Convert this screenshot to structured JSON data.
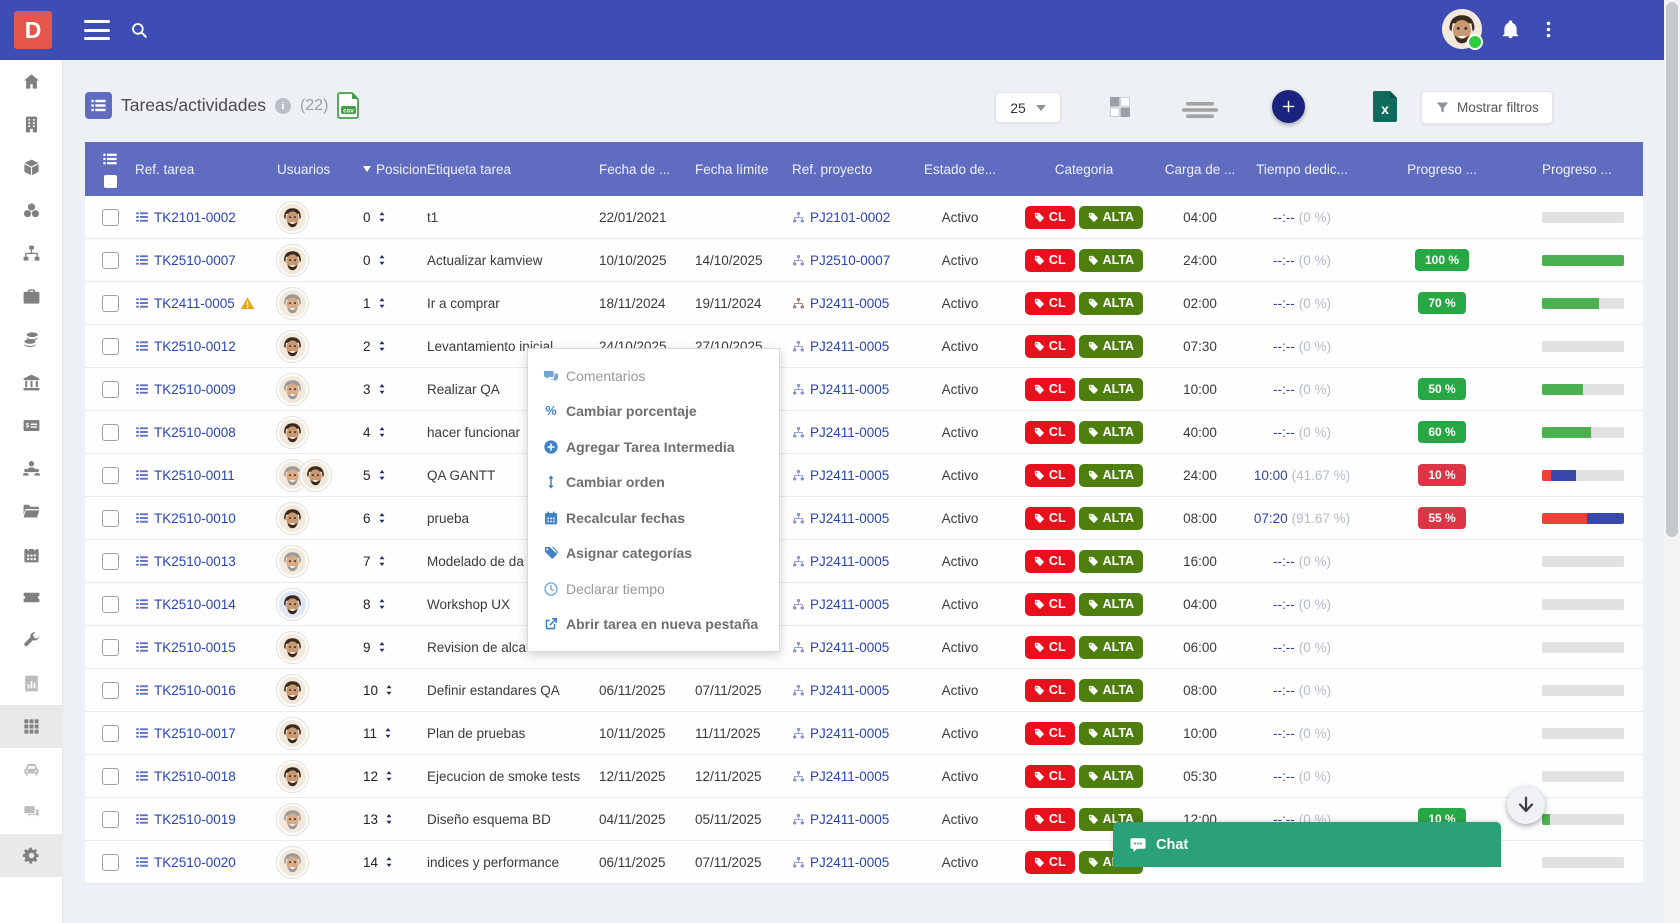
{
  "app": {
    "logo_letter": "D"
  },
  "colors": {
    "topbar": "#3e4db3",
    "table_header": "#5f6cbf",
    "logo_red": "#e4564c",
    "badge_red": "#e8101d",
    "badge_olive": "#4d7e0e",
    "pill_green": "#28a745",
    "pill_red": "#dc3545",
    "bar_green": "#4caf50",
    "bar_blue": "#3949ab",
    "bar_red": "#ef4136",
    "chat_green": "#2aa179",
    "link_navy": "#2944b2",
    "add_button_navy": "#1a237e",
    "excel_teal": "#0f6b5c",
    "csv_green": "#43a047",
    "warning_amber": "#e6a817"
  },
  "header": {
    "title": "Tareas/actividades",
    "count": "(22)"
  },
  "toolbar": {
    "page_size": "25",
    "filters_label": "Mostrar filtros"
  },
  "sidebar": {
    "items": [
      {
        "name": "home"
      },
      {
        "name": "building"
      },
      {
        "name": "cube"
      },
      {
        "name": "stock"
      },
      {
        "name": "sitemap"
      },
      {
        "name": "briefcase"
      },
      {
        "name": "coins"
      },
      {
        "name": "bank"
      },
      {
        "name": "money-check"
      },
      {
        "name": "hr"
      },
      {
        "name": "folder"
      },
      {
        "name": "calendar"
      },
      {
        "name": "ticket"
      },
      {
        "name": "wrench"
      },
      {
        "name": "report",
        "muted": true
      },
      {
        "name": "grid",
        "active": true
      },
      {
        "name": "car",
        "muted": true
      },
      {
        "name": "messages",
        "muted": true
      },
      {
        "name": "gear",
        "active": true
      }
    ]
  },
  "table": {
    "columns": [
      {
        "key": "sel",
        "label": ""
      },
      {
        "key": "ref",
        "label": "Ref. tarea"
      },
      {
        "key": "users",
        "label": "Usuarios"
      },
      {
        "key": "pos",
        "label": "Posicion",
        "sorted": true
      },
      {
        "key": "label",
        "label": "Etiqueta tarea"
      },
      {
        "key": "d1",
        "label": "Fecha de ..."
      },
      {
        "key": "d2",
        "label": "Fecha límite"
      },
      {
        "key": "proj",
        "label": "Ref. proyecto"
      },
      {
        "key": "status",
        "label": "Estado de..."
      },
      {
        "key": "cat",
        "label": "Categoria"
      },
      {
        "key": "load",
        "label": "Carga de ..."
      },
      {
        "key": "time",
        "label": "Tiempo dedic..."
      },
      {
        "key": "pill",
        "label": "Progreso ..."
      },
      {
        "key": "bar",
        "label": "Progreso ..."
      }
    ],
    "rows": [
      {
        "ref": "TK2101-0002",
        "warn": false,
        "users": [
          "a"
        ],
        "pos": "0",
        "label": "t1",
        "d1": "22/01/2021",
        "d2": "",
        "project": "PJ2101-0002",
        "status": "Activo",
        "cats": [
          "CL",
          "ALTA"
        ],
        "load": "04:00",
        "time": "--:--",
        "pct": "(0 %)",
        "pill": null,
        "pill_color": null,
        "bar": []
      },
      {
        "ref": "TK2510-0007",
        "warn": false,
        "users": [
          "a"
        ],
        "pos": "0",
        "label": "Actualizar kamview",
        "d1": "10/10/2025",
        "d2": "14/10/2025",
        "project": "PJ2510-0007",
        "status": "Activo",
        "cats": [
          "CL",
          "ALTA"
        ],
        "load": "24:00",
        "time": "--:--",
        "pct": "(0 %)",
        "pill": "100 %",
        "pill_color": "green",
        "bar": [
          [
            "green",
            100
          ]
        ]
      },
      {
        "ref": "TK2411-0005",
        "warn": true,
        "users": [
          "b"
        ],
        "pos": "1",
        "label": "Ir a comprar",
        "d1": "18/11/2024",
        "d2": "19/11/2024",
        "project": "PJ2411-0005",
        "proj_color": "#9c7a6a",
        "status": "Activo",
        "cats": [
          "CL",
          "ALTA"
        ],
        "load": "02:00",
        "time": "--:--",
        "pct": "(0 %)",
        "pill": "70 %",
        "pill_color": "green",
        "bar": [
          [
            "green",
            70
          ]
        ]
      },
      {
        "ref": "TK2510-0012",
        "warn": false,
        "users": [
          "a"
        ],
        "pos": "2",
        "label": "Levantamiento inicial",
        "d1": "24/10/2025",
        "d2": "27/10/2025",
        "project": "PJ2411-0005",
        "status": "Activo",
        "cats": [
          "CL",
          "ALTA"
        ],
        "load": "07:30",
        "time": "--:--",
        "pct": "(0 %)",
        "pill": null,
        "pill_color": null,
        "bar": []
      },
      {
        "ref": "TK2510-0009",
        "warn": false,
        "users": [
          "b"
        ],
        "pos": "3",
        "label": "Realizar QA",
        "d1": "",
        "d2": "",
        "project": "PJ2411-0005",
        "status": "Activo",
        "cats": [
          "CL",
          "ALTA"
        ],
        "load": "10:00",
        "time": "--:--",
        "pct": "(0 %)",
        "pill": "50 %",
        "pill_color": "green",
        "bar": [
          [
            "green",
            50
          ]
        ]
      },
      {
        "ref": "TK2510-0008",
        "warn": false,
        "users": [
          "a"
        ],
        "pos": "4",
        "label": "hacer funcionar",
        "d1": "",
        "d2": "",
        "project": "PJ2411-0005",
        "status": "Activo",
        "cats": [
          "CL",
          "ALTA"
        ],
        "load": "40:00",
        "time": "--:--",
        "pct": "(0 %)",
        "pill": "60 %",
        "pill_color": "green",
        "bar": [
          [
            "green",
            60
          ]
        ]
      },
      {
        "ref": "TK2510-0011",
        "warn": false,
        "users": [
          "b",
          "a"
        ],
        "pos": "5",
        "label": "QA GANTT",
        "d1": "",
        "d2": "",
        "project": "PJ2411-0005",
        "status": "Activo",
        "cats": [
          "CL",
          "ALTA"
        ],
        "load": "24:00",
        "time": "10:00",
        "pct": "(41.67 %)",
        "pill": "10 %",
        "pill_color": "red",
        "bar": [
          [
            "red",
            11
          ],
          [
            "blue",
            31
          ]
        ]
      },
      {
        "ref": "TK2510-0010",
        "warn": false,
        "users": [
          "a"
        ],
        "pos": "6",
        "label": "prueba",
        "d1": "",
        "d2": "",
        "project": "PJ2411-0005",
        "status": "Activo",
        "cats": [
          "CL",
          "ALTA"
        ],
        "load": "08:00",
        "time": "07:20",
        "pct": "(91.67 %)",
        "pill": "55 %",
        "pill_color": "red",
        "bar": [
          [
            "red",
            55
          ],
          [
            "blue",
            45
          ]
        ]
      },
      {
        "ref": "TK2510-0013",
        "warn": false,
        "users": [
          "b"
        ],
        "pos": "7",
        "label": "Modelado de da",
        "d1": "",
        "d2": "",
        "project": "PJ2411-0005",
        "status": "Activo",
        "cats": [
          "CL",
          "ALTA"
        ],
        "load": "16:00",
        "time": "--:--",
        "pct": "(0 %)",
        "pill": null,
        "pill_color": null,
        "bar": []
      },
      {
        "ref": "TK2510-0014",
        "warn": false,
        "users": [
          "c"
        ],
        "pos": "8",
        "label": "Workshop UX",
        "d1": "",
        "d2": "",
        "project": "PJ2411-0005",
        "status": "Activo",
        "cats": [
          "CL",
          "ALTA"
        ],
        "load": "04:00",
        "time": "--:--",
        "pct": "(0 %)",
        "pill": null,
        "pill_color": null,
        "bar": []
      },
      {
        "ref": "TK2510-0015",
        "warn": false,
        "users": [
          "a"
        ],
        "pos": "9",
        "label": "Revision de alcance",
        "d1": "05/11/2025",
        "d2": "05/11/2025",
        "project": "PJ2411-0005",
        "status": "Activo",
        "cats": [
          "CL",
          "ALTA"
        ],
        "load": "06:00",
        "time": "--:--",
        "pct": "(0 %)",
        "pill": null,
        "pill_color": null,
        "bar": []
      },
      {
        "ref": "TK2510-0016",
        "warn": false,
        "users": [
          "a"
        ],
        "pos": "10",
        "label": "Definir estandares QA",
        "d1": "06/11/2025",
        "d2": "07/11/2025",
        "project": "PJ2411-0005",
        "status": "Activo",
        "cats": [
          "CL",
          "ALTA"
        ],
        "load": "08:00",
        "time": "--:--",
        "pct": "(0 %)",
        "pill": null,
        "pill_color": null,
        "bar": []
      },
      {
        "ref": "TK2510-0017",
        "warn": false,
        "users": [
          "a"
        ],
        "pos": "11",
        "label": "Plan de pruebas",
        "d1": "10/11/2025",
        "d2": "11/11/2025",
        "project": "PJ2411-0005",
        "status": "Activo",
        "cats": [
          "CL",
          "ALTA"
        ],
        "load": "10:00",
        "time": "--:--",
        "pct": "(0 %)",
        "pill": null,
        "pill_color": null,
        "bar": []
      },
      {
        "ref": "TK2510-0018",
        "warn": false,
        "users": [
          "a"
        ],
        "pos": "12",
        "label": "Ejecucion de smoke tests",
        "d1": "12/11/2025",
        "d2": "12/11/2025",
        "project": "PJ2411-0005",
        "status": "Activo",
        "cats": [
          "CL",
          "ALTA"
        ],
        "load": "05:30",
        "time": "--:--",
        "pct": "(0 %)",
        "pill": null,
        "pill_color": null,
        "bar": []
      },
      {
        "ref": "TK2510-0019",
        "warn": false,
        "users": [
          "b"
        ],
        "pos": "13",
        "label": "Diseño esquema BD",
        "d1": "04/11/2025",
        "d2": "05/11/2025",
        "project": "PJ2411-0005",
        "status": "Activo",
        "cats": [
          "CL",
          "ALTA"
        ],
        "load": "12:00",
        "time": "--:--",
        "pct": "(0 %)",
        "pill": "10 %",
        "pill_color": "green",
        "bar": [
          [
            "green",
            10
          ]
        ]
      },
      {
        "ref": "TK2510-0020",
        "warn": false,
        "users": [
          "b"
        ],
        "pos": "14",
        "label": "indices y performance",
        "d1": "06/11/2025",
        "d2": "07/11/2025",
        "project": "PJ2411-0005",
        "status": "Activo",
        "cats": [
          "CL",
          "ALTA"
        ],
        "load": "",
        "time": "",
        "pct": "",
        "pill": null,
        "pill_color": null,
        "bar": []
      }
    ]
  },
  "context_menu": {
    "items": [
      {
        "label": "Comentarios",
        "icon": "comments",
        "emphasis": false
      },
      {
        "label": "Cambiar porcentaje",
        "icon": "percent",
        "emphasis": true
      },
      {
        "label": "Agregar Tarea Intermedia",
        "icon": "plus-circle",
        "emphasis": true
      },
      {
        "label": "Cambiar orden",
        "icon": "arrows-v",
        "emphasis": true
      },
      {
        "label": "Recalcular fechas",
        "icon": "calendar-menu",
        "emphasis": true
      },
      {
        "label": "Asignar categorías",
        "icon": "tags",
        "emphasis": true
      },
      {
        "label": "Declarar tiempo",
        "icon": "clock",
        "emphasis": false
      },
      {
        "label": "Abrir tarea en nueva pestaña",
        "icon": "external-link",
        "emphasis": true
      }
    ]
  },
  "chat": {
    "label": "Chat"
  }
}
